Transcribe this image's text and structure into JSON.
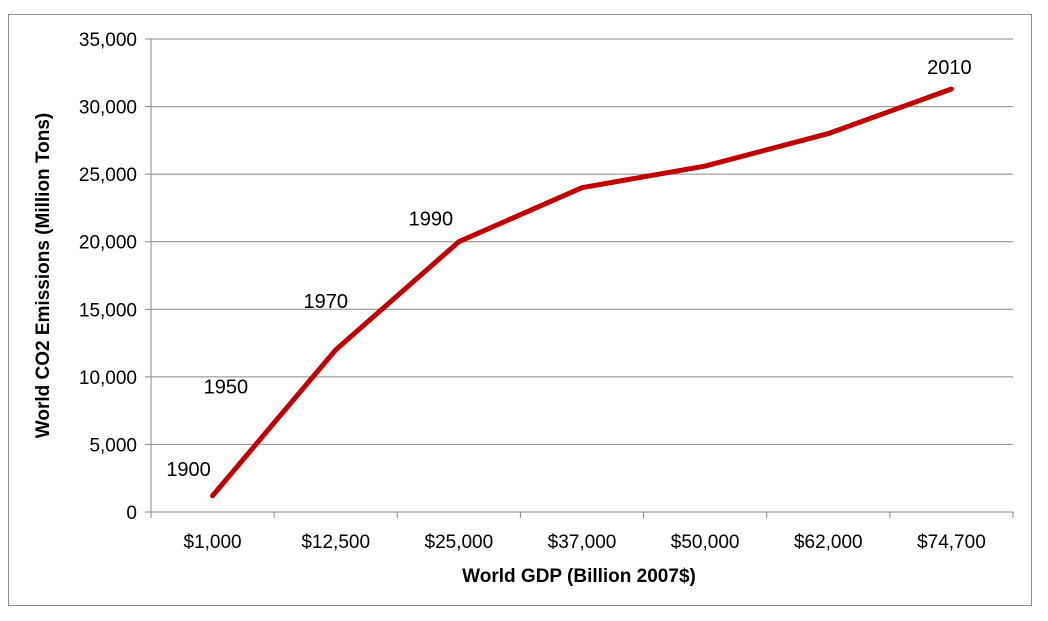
{
  "chart_data": {
    "type": "line",
    "title": "",
    "xlabel": "World GDP (Billion 2007$)",
    "ylabel": "World CO2 Emissions (Million  Tons)",
    "categories": [
      "$1,000",
      "$12,500",
      "$25,000",
      "$37,000",
      "$50,000",
      "$62,000",
      "$74,700"
    ],
    "y_ticks": [
      "0",
      "5,000",
      "10,000",
      "15,000",
      "20,000",
      "25,000",
      "30,000",
      "35,000"
    ],
    "ylim": [
      0,
      35000
    ],
    "grid": "horizontal",
    "legend": "none",
    "series": [
      {
        "color": "#c00000",
        "points": [
          {
            "x": 0.0,
            "y": 1200
          },
          {
            "x": 1.0,
            "y": 12000
          },
          {
            "x": 2.0,
            "y": 20000
          },
          {
            "x": 3.0,
            "y": 24000
          },
          {
            "x": 4.0,
            "y": 25600
          },
          {
            "x": 5.0,
            "y": 28000
          },
          {
            "x": 6.0,
            "y": 31300
          }
        ]
      }
    ],
    "annotations": [
      {
        "text": "1900",
        "x": 0.0,
        "y": 1200
      },
      {
        "text": "1950",
        "x": 0.4,
        "y": 7000
      },
      {
        "text": "1970",
        "x": 1.0,
        "y": 12000
      },
      {
        "text": "1990",
        "x": 2.0,
        "y": 20000
      },
      {
        "text": "2010",
        "x": 6.0,
        "y": 31300
      }
    ]
  }
}
